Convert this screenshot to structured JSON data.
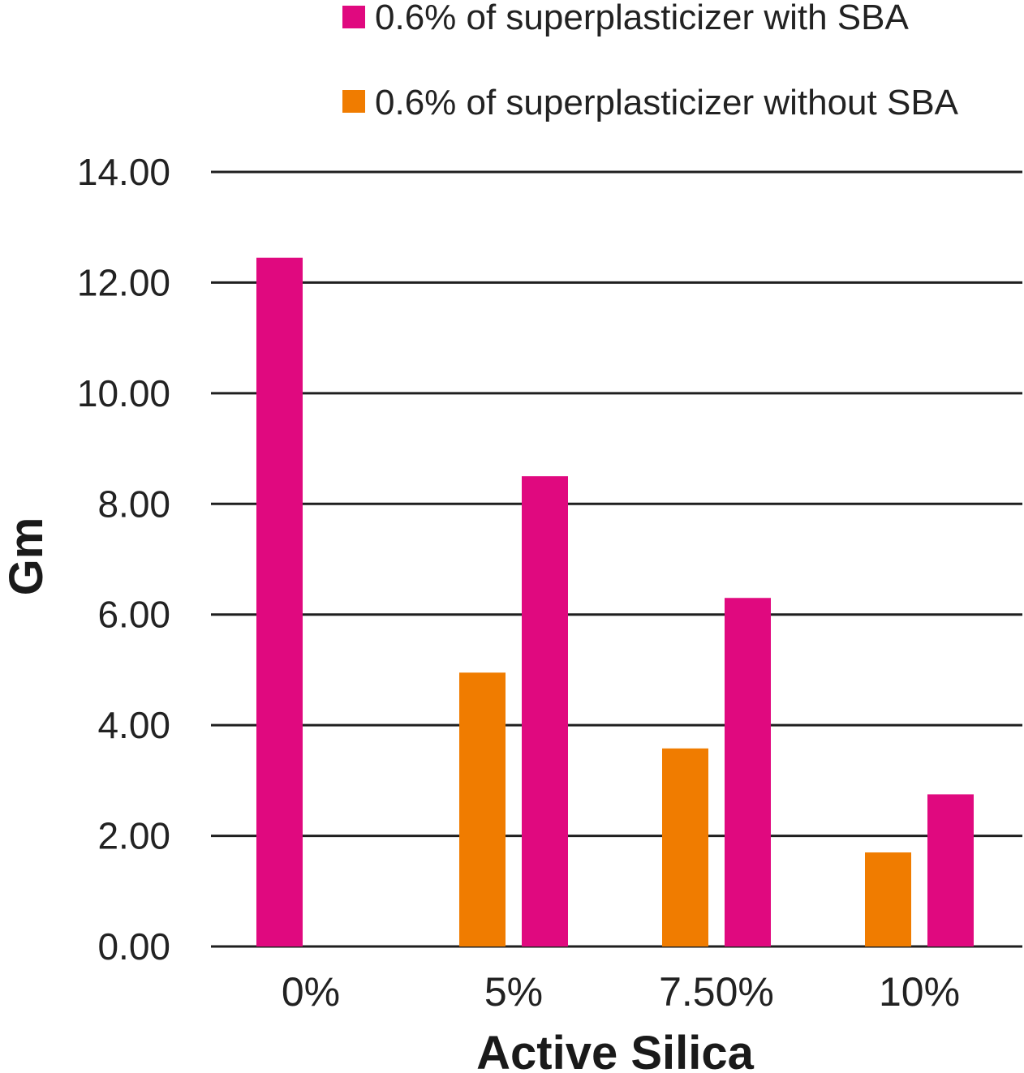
{
  "chart_data": {
    "type": "bar",
    "xlabel": "Active Silica",
    "ylabel": "Gm",
    "categories": [
      "0%",
      "5%",
      "7.50%",
      "10%"
    ],
    "ylim": [
      0,
      14
    ],
    "yticks": [
      "0.00",
      "2.00",
      "4.00",
      "6.00",
      "8.00",
      "10.00",
      "12.00",
      "14.00"
    ],
    "series": [
      {
        "name": "0.6% of superplasticizer without SBA",
        "color": "#f07c00",
        "values": [
          null,
          4.95,
          3.58,
          1.7
        ]
      },
      {
        "name": "0.6% of superplasticizer with SBA",
        "color": "#e0097f",
        "values": [
          12.45,
          8.5,
          6.3,
          2.75
        ]
      }
    ],
    "legend": {
      "position": "top-right",
      "order": [
        1,
        0
      ]
    },
    "grid": true
  }
}
